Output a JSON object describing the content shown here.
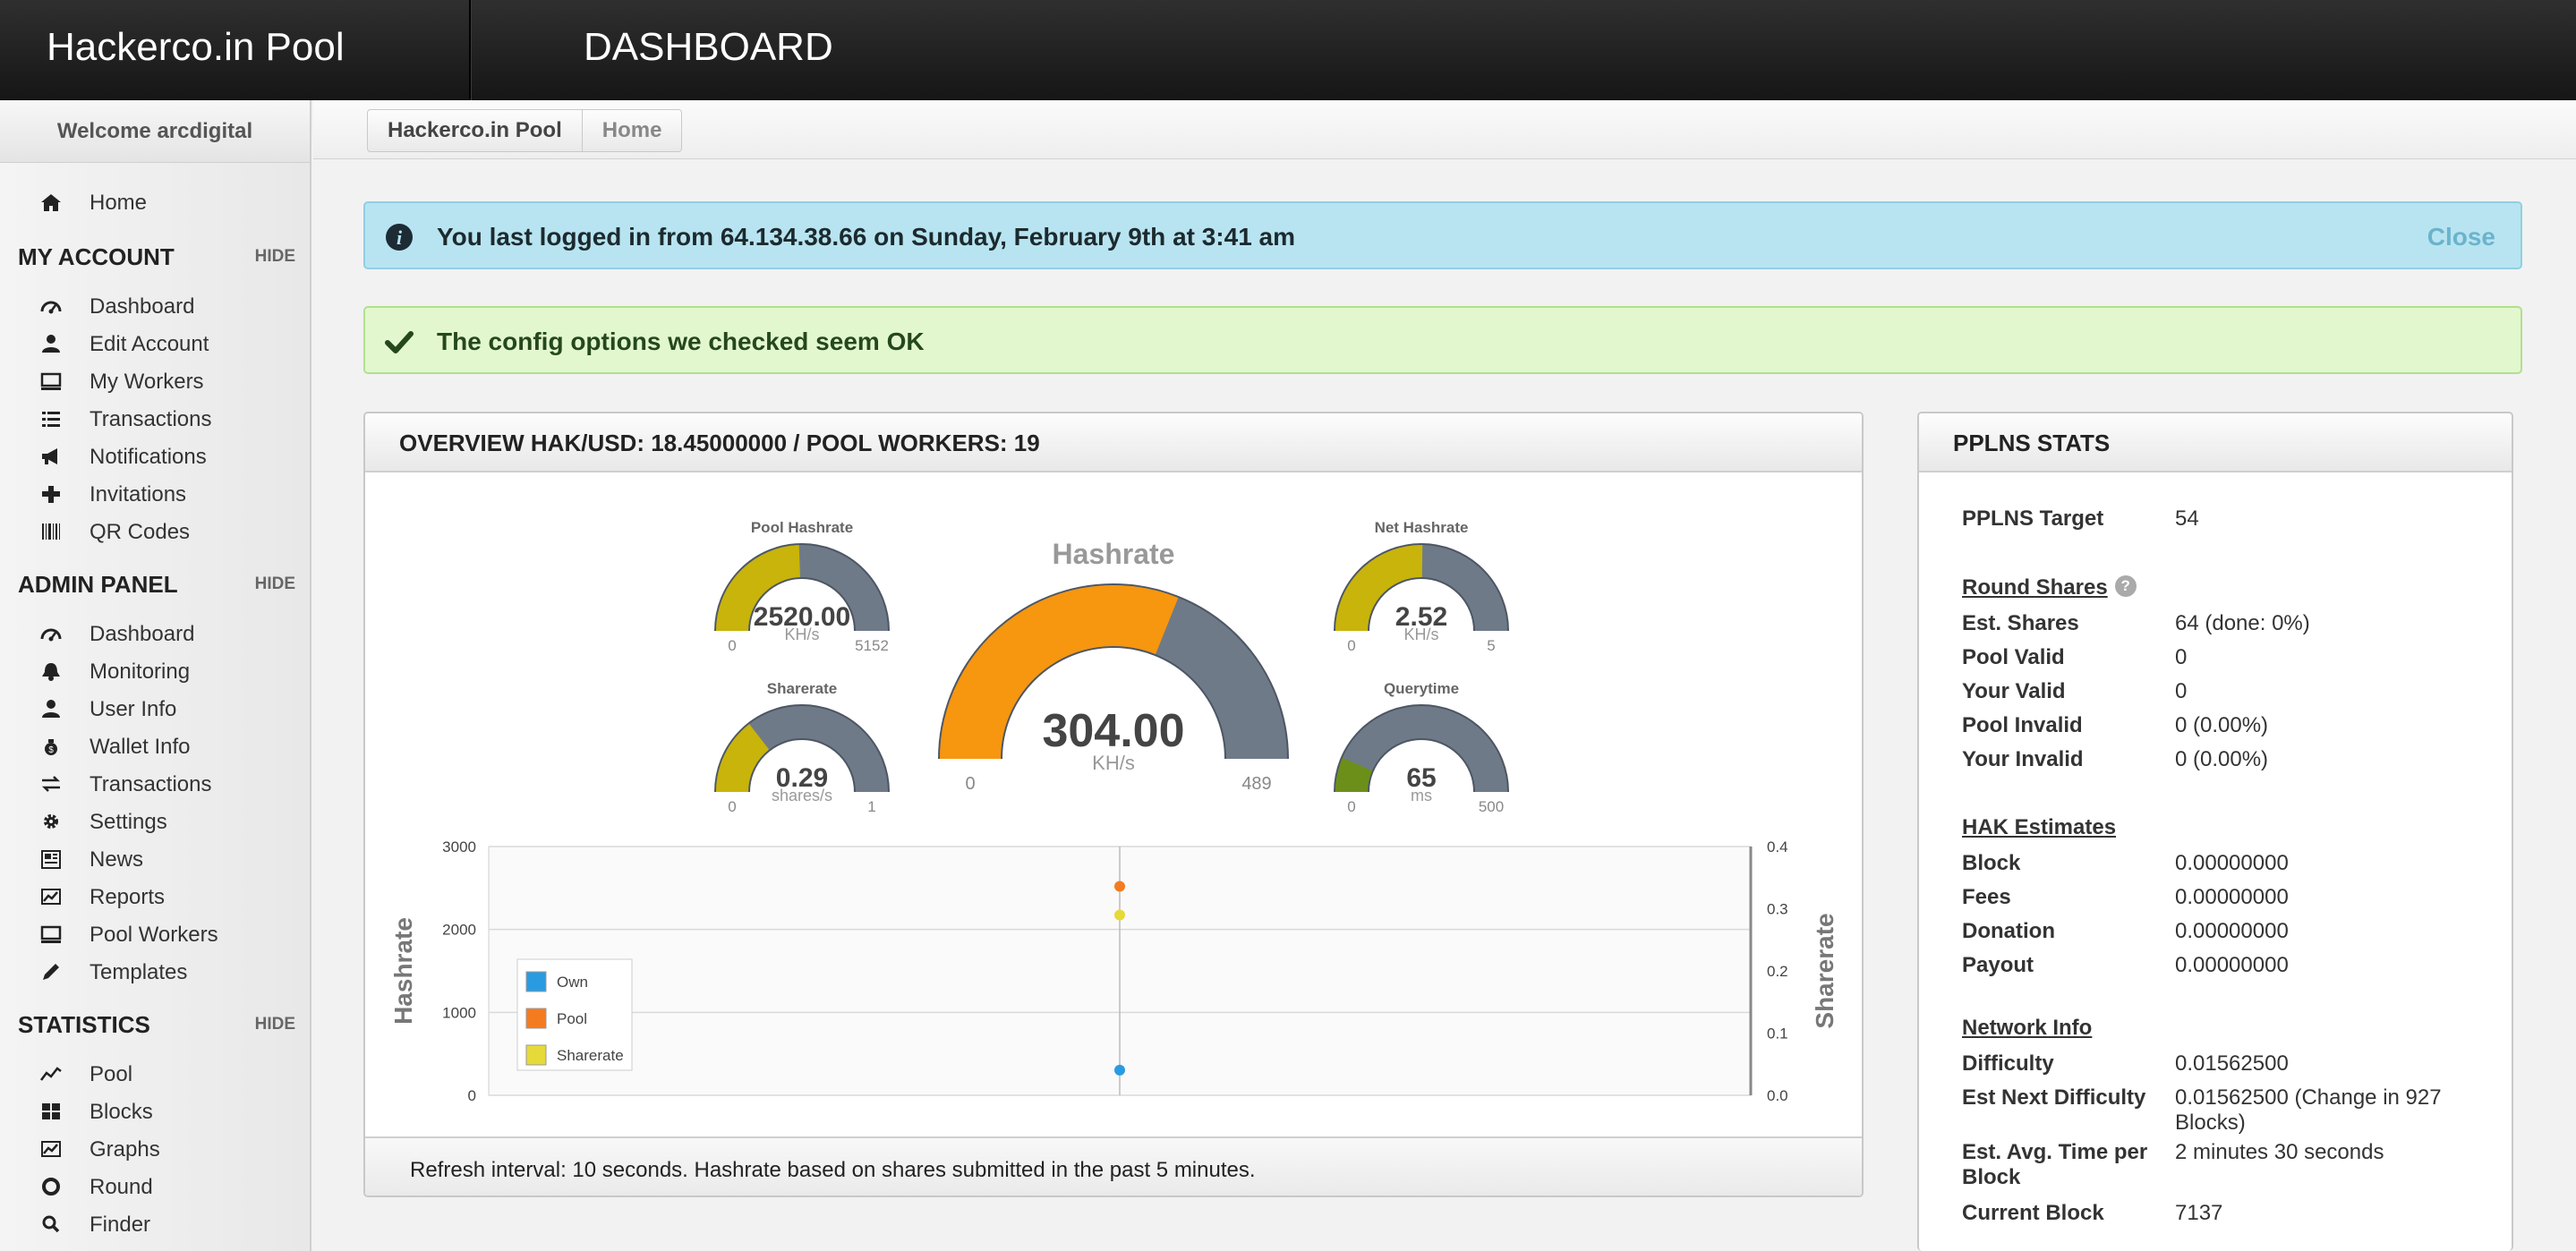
{
  "header": {
    "site_title": "Hackerco.in Pool",
    "page_heading": "DASHBOARD"
  },
  "sidebar": {
    "welcome": "Welcome arcdigital",
    "home": {
      "label": "Home",
      "icon": "home-icon"
    },
    "hide_label": "HIDE",
    "my_account": {
      "title": "MY ACCOUNT",
      "items": [
        {
          "label": "Dashboard",
          "icon": "dashboard-icon"
        },
        {
          "label": "Edit Account",
          "icon": "user-icon"
        },
        {
          "label": "My Workers",
          "icon": "monitor-icon"
        },
        {
          "label": "Transactions",
          "icon": "list-icon"
        },
        {
          "label": "Notifications",
          "icon": "megaphone-icon"
        },
        {
          "label": "Invitations",
          "icon": "plus-icon"
        },
        {
          "label": "QR Codes",
          "icon": "barcode-icon"
        }
      ]
    },
    "admin_panel": {
      "title": "ADMIN PANEL",
      "items": [
        {
          "label": "Dashboard",
          "icon": "dashboard-icon"
        },
        {
          "label": "Monitoring",
          "icon": "bell-icon"
        },
        {
          "label": "User Info",
          "icon": "user-icon"
        },
        {
          "label": "Wallet Info",
          "icon": "money-bag-icon"
        },
        {
          "label": "Transactions",
          "icon": "transfer-icon"
        },
        {
          "label": "Settings",
          "icon": "gear-icon"
        },
        {
          "label": "News",
          "icon": "newspaper-icon"
        },
        {
          "label": "Reports",
          "icon": "chart-icon"
        },
        {
          "label": "Pool Workers",
          "icon": "monitor-icon"
        },
        {
          "label": "Templates",
          "icon": "pencil-icon"
        }
      ]
    },
    "statistics": {
      "title": "STATISTICS",
      "items": [
        {
          "label": "Pool",
          "icon": "line-icon"
        },
        {
          "label": "Blocks",
          "icon": "blocks-icon"
        },
        {
          "label": "Graphs",
          "icon": "chart-icon"
        },
        {
          "label": "Round",
          "icon": "circle-icon"
        },
        {
          "label": "Finder",
          "icon": "search-icon"
        }
      ]
    }
  },
  "breadcrumb": {
    "root": "Hackerco.in Pool",
    "current": "Home"
  },
  "alerts": {
    "login": {
      "text": "You last logged in from 64.134.38.66 on Sunday, February 9th at 3:41 am",
      "close": "Close",
      "icon": "info-icon"
    },
    "config": {
      "text": "The config options we checked seem OK",
      "icon": "check-icon"
    }
  },
  "overview": {
    "title": "OVERVIEW HAK/USD: 18.45000000 / POOL WORKERS: 19",
    "footer": "Refresh interval: 10 seconds. Hashrate based on shares submitted in the past 5 minutes.",
    "gauges": {
      "pool_hashrate": {
        "title": "Pool Hashrate",
        "value": 2520.0,
        "display": "2520.00",
        "unit": "KH/s",
        "min": "0",
        "max": "5152"
      },
      "sharerate": {
        "title": "Sharerate",
        "value": 0.29,
        "display": "0.29",
        "unit": "shares/s",
        "min": "0",
        "max": "1"
      },
      "hashrate": {
        "title": "Hashrate",
        "value": 304.0,
        "display": "304.00",
        "unit": "KH/s",
        "min": "0",
        "max": "489"
      },
      "net_hashrate": {
        "title": "Net Hashrate",
        "value": 2.52,
        "display": "2.52",
        "unit": "KH/s",
        "min": "0",
        "max": "5"
      },
      "querytime": {
        "title": "Querytime",
        "value": 65,
        "display": "65",
        "unit": "ms",
        "min": "0",
        "max": "500"
      }
    },
    "colors": {
      "fill_orange": "#f7960f",
      "fill_yellow": "#c8b40a",
      "fill_green": "#6c8f1a",
      "track": "#6f7a88"
    }
  },
  "chart_data": {
    "type": "scatter",
    "ylabel": "Hashrate",
    "y2label": "Sharerate",
    "ylim": [
      0,
      3000
    ],
    "y2lim": [
      0,
      0.4
    ],
    "yticks": [
      "3000",
      "2000",
      "1000",
      "0"
    ],
    "y2ticks": [
      "0.4",
      "0.3",
      "0.2",
      "0.1",
      "0.0"
    ],
    "grid": true,
    "legend_position": "bottom-left",
    "series": [
      {
        "name": "Own",
        "axis": "left",
        "values": [
          304
        ],
        "color": "#2a9be0"
      },
      {
        "name": "Pool",
        "axis": "left",
        "values": [
          2520
        ],
        "color": "#f47c20"
      },
      {
        "name": "Sharerate",
        "axis": "right",
        "values": [
          0.29
        ],
        "color": "#e6d93a"
      }
    ]
  },
  "pplns": {
    "title": "PPLNS STATS",
    "target": {
      "label": "PPLNS Target",
      "value": "54"
    },
    "round_shares": {
      "title": "Round Shares",
      "help_icon": "question-icon",
      "rows": [
        {
          "label": "Est. Shares",
          "value": "64 (done: 0%)"
        },
        {
          "label": "Pool Valid",
          "value": "0"
        },
        {
          "label": "Your Valid",
          "value": "0"
        },
        {
          "label": "Pool Invalid",
          "value": "0 (0.00%)"
        },
        {
          "label": "Your Invalid",
          "value": "0 (0.00%)"
        }
      ]
    },
    "hak_estimates": {
      "title": "HAK Estimates",
      "rows": [
        {
          "label": "Block",
          "value": "0.00000000"
        },
        {
          "label": "Fees",
          "value": "0.00000000"
        },
        {
          "label": "Donation",
          "value": "0.00000000"
        },
        {
          "label": "Payout",
          "value": "0.00000000"
        }
      ]
    },
    "network_info": {
      "title": "Network Info",
      "rows": [
        {
          "label": "Difficulty",
          "value": "0.01562500"
        },
        {
          "label": "Est Next Difficulty",
          "value": "0.01562500 (Change in 927 Blocks)"
        },
        {
          "label": "Est. Avg. Time per Block",
          "value": "2 minutes 30 seconds"
        },
        {
          "label": "Current Block",
          "value": "7137"
        }
      ]
    }
  }
}
